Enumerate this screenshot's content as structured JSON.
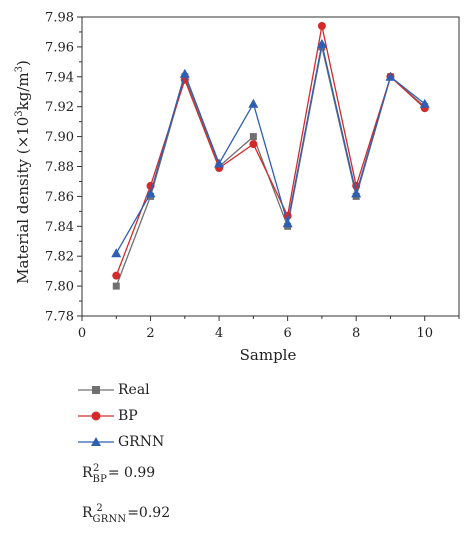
{
  "chart_data": {
    "type": "line",
    "xlabel": "Sample",
    "ylabel_parts": {
      "main": "Material density (×10",
      "exp": "3",
      "mid": "kg/m",
      "exp2": "3",
      "end": ")"
    },
    "xlim": [
      0,
      11
    ],
    "ylim": [
      7.78,
      7.98
    ],
    "xticks": [
      0,
      2,
      4,
      6,
      8,
      10
    ],
    "yticks": [
      7.78,
      7.8,
      7.82,
      7.84,
      7.86,
      7.88,
      7.9,
      7.92,
      7.94,
      7.96,
      7.98
    ],
    "x": [
      1,
      2,
      3,
      4,
      5,
      6,
      7,
      8,
      9,
      10
    ],
    "series": [
      {
        "name": "Real",
        "color": "#707070",
        "marker": "square",
        "values": [
          7.8,
          7.86,
          7.94,
          7.88,
          7.9,
          7.84,
          7.96,
          7.86,
          7.94,
          7.92
        ]
      },
      {
        "name": "BP",
        "color": "#d42a2a",
        "marker": "circle",
        "values": [
          7.807,
          7.867,
          7.938,
          7.879,
          7.895,
          7.847,
          7.974,
          7.867,
          7.94,
          7.919
        ]
      },
      {
        "name": "GRNN",
        "color": "#2f5fb3",
        "marker": "triangle",
        "values": [
          7.822,
          7.862,
          7.942,
          7.882,
          7.922,
          7.842,
          7.962,
          7.862,
          7.94,
          7.922
        ]
      }
    ],
    "annotations": [
      {
        "id": "r2-bp",
        "base": "R",
        "sup": "2",
        "sub": "BP",
        "text": " = 0.99"
      },
      {
        "id": "r2-grnn",
        "base": "R",
        "sup": "2",
        "sub": "GRNN",
        "text": " =0.92"
      }
    ],
    "grid": false
  }
}
